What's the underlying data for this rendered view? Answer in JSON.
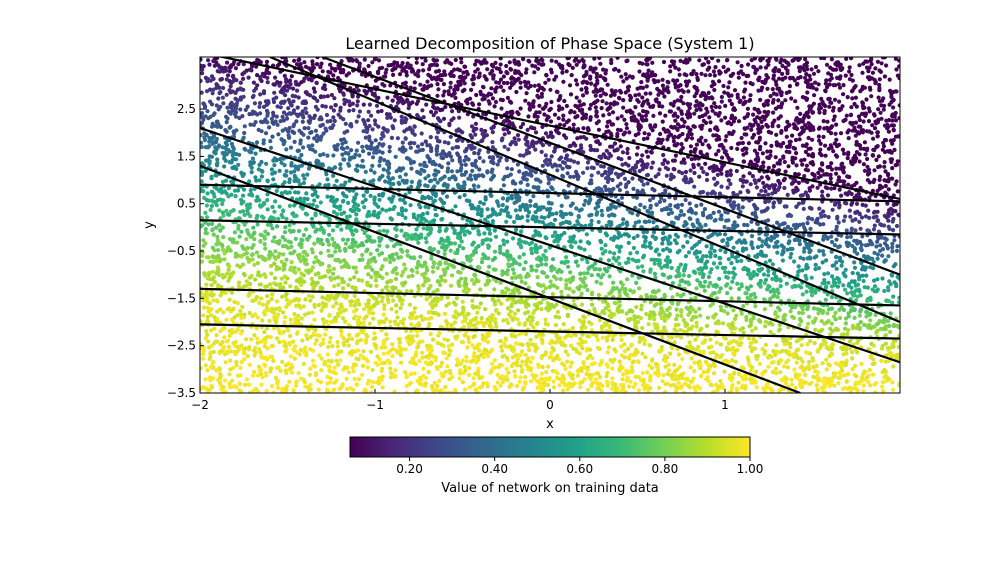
{
  "chart_data": {
    "type": "scatter",
    "title": "Learned Decomposition of Phase Space (System 1)",
    "xlabel": "x",
    "ylabel": "y",
    "xlim": [
      -2.0,
      2.0
    ],
    "ylim": [
      -3.5,
      3.6
    ],
    "xticks": [
      -2,
      -1,
      0,
      1
    ],
    "xtick_labels": [
      "−2",
      "−1",
      "0",
      "1"
    ],
    "yticks": [
      2.5,
      1.5,
      0.5,
      -0.5,
      -1.5,
      -2.5,
      -3.5
    ],
    "ytick_labels": [
      "2.5",
      "1.5",
      "0.5",
      "−0.5",
      "−1.5",
      "−2.5",
      "−3.5"
    ],
    "grid": false,
    "colormap": "viridis",
    "scatter": {
      "n_points": 9000,
      "value_function": "color encodes network value; ~0.06 at top (y > 2.5), rising through ~0.5 near y = 0.4 - 0.6x, to ~1.0 below y = -2.5",
      "value_bands": [
        {
          "y_at_x_minus2": 3.8,
          "y_at_x_2": 0.6,
          "value": 0.06
        },
        {
          "y_at_x_minus2": 2.1,
          "y_at_x_2": -0.5,
          "value": 0.35
        },
        {
          "y_at_x_minus2": 0.9,
          "y_at_x_2": -1.3,
          "value": 0.6
        },
        {
          "y_at_x_minus2": -0.2,
          "y_at_x_2": -2.0,
          "value": 0.8
        },
        {
          "y_at_x_minus2": -1.5,
          "y_at_x_2": -2.7,
          "value": 0.95
        },
        {
          "y_at_x_minus2": -3.5,
          "y_at_x_2": -3.5,
          "value": 1.0
        }
      ]
    },
    "boundary_lines": [
      {
        "x": [
          -2.0,
          2.0
        ],
        "y": [
          0.9,
          0.55
        ]
      },
      {
        "x": [
          -2.0,
          2.0
        ],
        "y": [
          0.15,
          -0.15
        ]
      },
      {
        "x": [
          -2.0,
          2.0
        ],
        "y": [
          -1.3,
          -1.65
        ]
      },
      {
        "x": [
          -2.0,
          2.0
        ],
        "y": [
          -2.05,
          -2.35
        ]
      },
      {
        "x": [
          -1.6,
          2.0
        ],
        "y": [
          3.6,
          -2.0
        ]
      },
      {
        "x": [
          -1.3,
          2.0
        ],
        "y": [
          3.6,
          -1.0
        ]
      },
      {
        "x": [
          -2.0,
          2.0
        ],
        "y": [
          2.1,
          -2.85
        ]
      },
      {
        "x": [
          -2.0,
          1.43
        ],
        "y": [
          1.3,
          -3.5
        ]
      },
      {
        "x": [
          -2.0,
          2.0
        ],
        "y": [
          3.7,
          0.6
        ]
      }
    ],
    "colorbar": {
      "label": "Value of network on training data",
      "min": 0.06,
      "max": 1.0,
      "ticks": [
        0.2,
        0.4,
        0.6,
        0.8,
        1.0
      ],
      "tick_labels": [
        "0.20",
        "0.40",
        "0.60",
        "0.80",
        "1.00"
      ],
      "orientation": "horizontal"
    }
  }
}
